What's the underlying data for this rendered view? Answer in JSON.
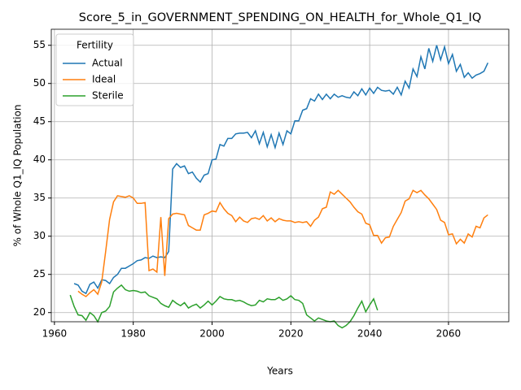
{
  "chart_data": {
    "type": "line",
    "title": "Score_5_in_GOVERNMENT_SPENDING_ON_HEALTH_for_Whole_Q1_IQ",
    "x_label": "Years",
    "y_label": "% of Whole Q1_IQ Population",
    "legend_title": "Fertility",
    "legend_position": "upper left",
    "grid": true,
    "xlim": [
      1959.2,
      2075.3
    ],
    "xticks": [
      1960,
      1980,
      2000,
      2020,
      2040,
      2060
    ],
    "ylim": [
      18.8,
      57.1
    ],
    "yticks": [
      20,
      25,
      30,
      35,
      40,
      45,
      50,
      55
    ],
    "x": [
      1964,
      1965,
      1966,
      1967,
      1968,
      1969,
      1970,
      1971,
      1972,
      1973,
      1974,
      1975,
      1976,
      1977,
      1978,
      1979,
      1980,
      1981,
      1982,
      1983,
      1984,
      1985,
      1986,
      1987,
      1988,
      1989,
      1990,
      1991,
      1992,
      1993,
      1994,
      1995,
      1996,
      1997,
      1998,
      1999,
      2000,
      2001,
      2002,
      2003,
      2004,
      2005,
      2006,
      2007,
      2008,
      2009,
      2010,
      2011,
      2012,
      2013,
      2014,
      2015,
      2016,
      2017,
      2018,
      2019,
      2020,
      2021,
      2022,
      2023,
      2024,
      2025,
      2026,
      2027,
      2028,
      2029,
      2030,
      2031,
      2032,
      2033,
      2034,
      2035,
      2036,
      2037,
      2038,
      2039,
      2040,
      2041,
      2042,
      2043,
      2044,
      2045,
      2046,
      2047,
      2048,
      2049,
      2050,
      2051,
      2052,
      2053,
      2054,
      2055,
      2056,
      2057,
      2058,
      2059,
      2060,
      2061,
      2062,
      2063,
      2064,
      2065,
      2066,
      2067,
      2068,
      2069,
      2070
    ],
    "series": [
      {
        "name": "Actual",
        "color": "#1f77b4",
        "values": [
          null,
          23.8,
          23.6,
          22.8,
          22.5,
          23.7,
          24.0,
          23.2,
          24.3,
          24.2,
          23.8,
          24.6,
          25.0,
          25.8,
          25.8,
          26.1,
          26.4,
          26.8,
          26.9,
          27.2,
          27.1,
          27.4,
          27.2,
          27.3,
          27.2,
          28.0,
          38.8,
          39.5,
          39.0,
          39.2,
          38.2,
          38.4,
          37.6,
          37.1,
          38.0,
          38.2,
          40.0,
          40.1,
          42.0,
          41.8,
          42.8,
          42.8,
          43.4,
          43.5,
          43.5,
          43.6,
          42.9,
          43.8,
          42.1,
          43.6,
          41.7,
          43.3,
          41.6,
          43.5,
          42.0,
          43.8,
          43.4,
          45.1,
          45.1,
          46.5,
          46.7,
          48.0,
          47.7,
          48.6,
          47.9,
          48.6,
          48.0,
          48.6,
          48.2,
          48.4,
          48.2,
          48.1,
          48.9,
          48.4,
          49.3,
          48.5,
          49.4,
          48.7,
          49.5,
          49.1,
          49.0,
          49.1,
          48.6,
          49.5,
          48.5,
          50.3,
          49.4,
          51.9,
          50.9,
          53.5,
          51.9,
          54.6,
          52.9,
          55.0,
          53.1,
          54.8,
          52.6,
          53.8,
          51.6,
          52.5,
          50.8,
          51.4,
          50.7,
          51.1,
          51.3,
          51.6,
          52.7
        ]
      },
      {
        "name": "Ideal",
        "color": "#ff7f0e",
        "values": [
          null,
          null,
          22.8,
          22.4,
          22.1,
          22.6,
          23.0,
          22.4,
          24.0,
          28.0,
          32.2,
          34.5,
          35.3,
          35.2,
          35.1,
          35.3,
          35.0,
          34.3,
          34.3,
          34.4,
          25.5,
          25.7,
          25.3,
          32.5,
          24.8,
          32.3,
          32.9,
          33.0,
          32.9,
          32.8,
          31.4,
          31.1,
          30.8,
          30.8,
          32.8,
          33.0,
          33.3,
          33.2,
          34.4,
          33.6,
          33.0,
          32.7,
          31.9,
          32.5,
          32.0,
          31.8,
          32.3,
          32.4,
          32.2,
          32.7,
          32.0,
          32.4,
          31.9,
          32.3,
          32.1,
          32.0,
          32.0,
          31.8,
          31.9,
          31.8,
          31.9,
          31.3,
          32.1,
          32.5,
          33.6,
          33.8,
          35.8,
          35.5,
          36.0,
          35.5,
          35.0,
          34.5,
          33.8,
          33.2,
          32.9,
          31.7,
          31.5,
          30.1,
          30.1,
          29.1,
          29.8,
          29.9,
          31.3,
          32.2,
          33.1,
          34.6,
          34.9,
          36.0,
          35.7,
          36.0,
          35.4,
          34.9,
          34.2,
          33.5,
          32.1,
          31.8,
          30.2,
          30.3,
          29.0,
          29.6,
          29.1,
          30.3,
          29.9,
          31.3,
          31.1,
          32.4,
          32.8
        ]
      },
      {
        "name": "Sterile",
        "color": "#2ca02c",
        "values": [
          22.3,
          20.8,
          19.7,
          19.6,
          19.0,
          20.0,
          19.6,
          18.8,
          20.0,
          20.2,
          20.8,
          22.7,
          23.2,
          23.6,
          23.0,
          22.8,
          22.9,
          22.8,
          22.6,
          22.7,
          22.2,
          22.0,
          21.8,
          21.2,
          20.9,
          20.7,
          21.6,
          21.2,
          20.9,
          21.3,
          20.6,
          20.9,
          21.1,
          20.6,
          21.0,
          21.5,
          21.0,
          21.5,
          22.1,
          21.8,
          21.7,
          21.7,
          21.5,
          21.6,
          21.4,
          21.1,
          20.9,
          21.0,
          21.6,
          21.4,
          21.8,
          21.7,
          21.7,
          22.0,
          21.6,
          21.8,
          22.2,
          21.7,
          21.6,
          21.2,
          19.7,
          19.3,
          18.9,
          19.3,
          19.1,
          18.9,
          18.8,
          18.9,
          18.3,
          18.0,
          18.3,
          18.8,
          19.6,
          20.6,
          21.5,
          20.1,
          21.0,
          21.8,
          20.3,
          null,
          null,
          null,
          null,
          null,
          null,
          null,
          null,
          null,
          null,
          null,
          null,
          null,
          null,
          null,
          null,
          null,
          null,
          null,
          null,
          null,
          null,
          null,
          null,
          null,
          null,
          null,
          null
        ]
      }
    ]
  }
}
